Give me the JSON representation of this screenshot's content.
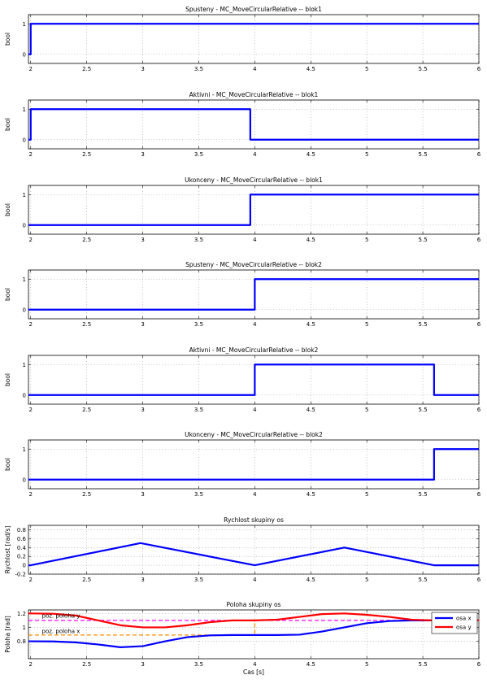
{
  "chart_data": [
    {
      "type": "line",
      "title": "Spusteny - MC_MoveCircularRelative -- blok1",
      "ylabel": "bool",
      "xlabel": "",
      "xlim": [
        1.98,
        6
      ],
      "ylim": [
        -0.3,
        1.3
      ],
      "xticks": [
        "2",
        "2.5",
        "3",
        "3.5",
        "4",
        "4.5",
        "5",
        "5.5",
        "6"
      ],
      "yticks": [
        "0",
        "1"
      ],
      "grid": true,
      "series": [
        {
          "color": "#0000ff",
          "step": true,
          "x": [
            1.98,
            2.0,
            2.0,
            6.0
          ],
          "y": [
            0,
            0,
            1,
            1
          ]
        }
      ]
    },
    {
      "type": "line",
      "title": "Aktivni - MC_MoveCircularRelative -- blok1",
      "ylabel": "bool",
      "xlabel": "",
      "xlim": [
        1.98,
        6
      ],
      "ylim": [
        -0.3,
        1.3
      ],
      "xticks": [
        "2",
        "2.5",
        "3",
        "3.5",
        "4",
        "4.5",
        "5",
        "5.5",
        "6"
      ],
      "yticks": [
        "0",
        "1"
      ],
      "grid": true,
      "series": [
        {
          "color": "#0000ff",
          "x": [
            1.98,
            2.0,
            2.0,
            3.96,
            3.96,
            6.0
          ],
          "y": [
            0,
            0,
            1,
            1,
            0,
            0
          ]
        }
      ]
    },
    {
      "type": "line",
      "title": "Ukonceny - MC_MoveCircularRelative -- blok1",
      "ylabel": "bool",
      "xlabel": "",
      "xlim": [
        1.98,
        6
      ],
      "ylim": [
        -0.3,
        1.3
      ],
      "xticks": [
        "2",
        "2.5",
        "3",
        "3.5",
        "4",
        "4.5",
        "5",
        "5.5",
        "6"
      ],
      "yticks": [
        "0",
        "1"
      ],
      "grid": true,
      "series": [
        {
          "color": "#0000ff",
          "x": [
            1.98,
            3.96,
            3.96,
            6.0
          ],
          "y": [
            0,
            0,
            1,
            1
          ]
        }
      ]
    },
    {
      "type": "line",
      "title": "Spusteny - MC_MoveCircularRelative -- blok2",
      "ylabel": "bool",
      "xlabel": "",
      "xlim": [
        1.98,
        6
      ],
      "ylim": [
        -0.3,
        1.3
      ],
      "xticks": [
        "2",
        "2.5",
        "3",
        "3.5",
        "4",
        "4.5",
        "5",
        "5.5",
        "6"
      ],
      "yticks": [
        "0",
        "1"
      ],
      "grid": true,
      "series": [
        {
          "color": "#0000ff",
          "x": [
            1.98,
            4.0,
            4.0,
            6.0
          ],
          "y": [
            0,
            0,
            1,
            1
          ]
        }
      ]
    },
    {
      "type": "line",
      "title": "Aktivni - MC_MoveCircularRelative -- blok2",
      "ylabel": "bool",
      "xlabel": "",
      "xlim": [
        1.98,
        6
      ],
      "ylim": [
        -0.3,
        1.3
      ],
      "xticks": [
        "2",
        "2.5",
        "3",
        "3.5",
        "4",
        "4.5",
        "5",
        "5.5",
        "6"
      ],
      "yticks": [
        "0",
        "1"
      ],
      "grid": true,
      "series": [
        {
          "color": "#0000ff",
          "x": [
            1.98,
            4.0,
            4.0,
            5.6,
            5.6,
            6.0
          ],
          "y": [
            0,
            0,
            1,
            1,
            0,
            0
          ]
        }
      ]
    },
    {
      "type": "line",
      "title": "Ukonceny - MC_MoveCircularRelative -- blok2",
      "ylabel": "bool",
      "xlabel": "",
      "xlim": [
        1.98,
        6
      ],
      "ylim": [
        -0.3,
        1.3
      ],
      "xticks": [
        "2",
        "2.5",
        "3",
        "3.5",
        "4",
        "4.5",
        "5",
        "5.5",
        "6"
      ],
      "yticks": [
        "0",
        "1"
      ],
      "grid": true,
      "series": [
        {
          "color": "#0000ff",
          "x": [
            1.98,
            5.6,
            5.6,
            6.0
          ],
          "y": [
            0,
            0,
            1,
            1
          ]
        }
      ]
    },
    {
      "type": "line",
      "title": "Rychlost skupiny os",
      "ylabel": "Rychlost [rad/s]",
      "xlabel": "",
      "xlim": [
        1.98,
        6
      ],
      "ylim": [
        -0.2,
        0.9
      ],
      "xticks": [
        "2",
        "2.5",
        "3",
        "3.5",
        "4",
        "4.5",
        "5",
        "5.5",
        "6"
      ],
      "yticks": [
        "-0.2",
        "0",
        "0.2",
        "0.4",
        "0.6",
        "0.8"
      ],
      "grid": true,
      "series": [
        {
          "color": "#0000ff",
          "x": [
            1.98,
            2.0,
            2.98,
            4.0,
            4.8,
            5.6,
            6.0
          ],
          "y": [
            0,
            0,
            0.5,
            0,
            0.4,
            0,
            0
          ]
        }
      ]
    },
    {
      "type": "line",
      "title": "Poloha skupiny os",
      "ylabel": "Poloha [rad]",
      "xlabel": "Cas [s]",
      "xlim": [
        1.98,
        6
      ],
      "ylim": [
        0.55,
        1.25
      ],
      "xticks": [
        "2",
        "2.5",
        "3",
        "3.5",
        "4",
        "4.5",
        "5",
        "5.5",
        "6"
      ],
      "yticks": [
        "0.8",
        "1",
        "1.2"
      ],
      "grid": true,
      "legend": {
        "position": "top-right",
        "entries": [
          "osa x",
          "osa y"
        ]
      },
      "annotations": [
        {
          "text": "poz. poloha y",
          "x": 2.1,
          "y": 1.14
        },
        {
          "text": "poz. poloha x",
          "x": 2.1,
          "y": 0.92
        }
      ],
      "series": [
        {
          "name": "osa x",
          "color": "#0000ff",
          "x": [
            1.98,
            2.0,
            2.2,
            2.4,
            2.6,
            2.8,
            3.0,
            3.2,
            3.4,
            3.6,
            3.8,
            4.0,
            4.2,
            4.4,
            4.6,
            4.8,
            5.0,
            5.2,
            5.4,
            5.6,
            5.8,
            6.0
          ],
          "y": [
            0.8,
            0.8,
            0.798,
            0.785,
            0.755,
            0.715,
            0.73,
            0.8,
            0.86,
            0.885,
            0.89,
            0.89,
            0.89,
            0.895,
            0.94,
            1.0,
            1.06,
            1.09,
            1.1,
            1.1,
            1.1,
            1.1
          ]
        },
        {
          "name": "osa y",
          "color": "#ff0000",
          "x": [
            1.98,
            2.0,
            2.2,
            2.4,
            2.6,
            2.8,
            3.0,
            3.2,
            3.4,
            3.6,
            3.8,
            4.0,
            4.2,
            4.4,
            4.6,
            4.8,
            5.0,
            5.2,
            5.4,
            5.6,
            5.8,
            6.0
          ],
          "y": [
            1.2,
            1.2,
            1.195,
            1.17,
            1.1,
            1.03,
            1.0,
            1.0,
            1.03,
            1.075,
            1.1,
            1.1,
            1.11,
            1.15,
            1.19,
            1.2,
            1.18,
            1.15,
            1.11,
            1.1,
            1.1,
            1.1
          ]
        },
        {
          "name": "",
          "color": "#ff00ff",
          "dashed": true,
          "x": [
            1.98,
            6.0
          ],
          "y": [
            1.1,
            1.1
          ]
        },
        {
          "name": "",
          "color": "#ff8c00",
          "dashed": true,
          "x": [
            1.98,
            4.0,
            4.0
          ],
          "y": [
            0.89,
            0.89,
            1.1
          ]
        }
      ]
    }
  ]
}
